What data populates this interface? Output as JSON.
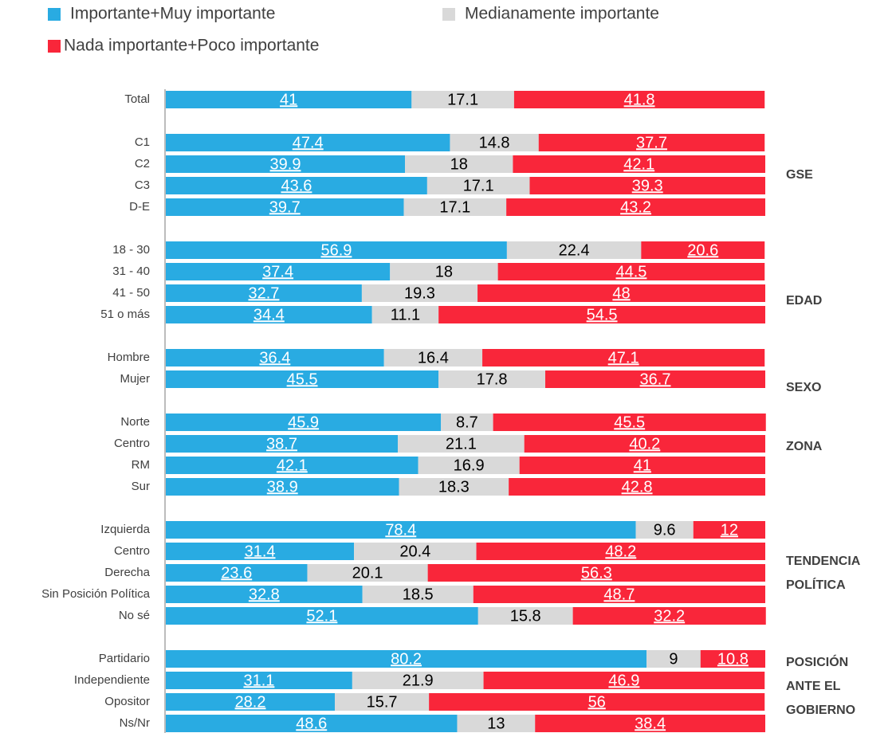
{
  "chart_data": {
    "type": "stacked-bar-horizontal",
    "categories": [
      "Total",
      null,
      "C1",
      "C2",
      "C3",
      "D-E",
      null,
      "18 - 30",
      "31 - 40",
      "41 - 50",
      "51 o más",
      null,
      "Hombre",
      "Mujer",
      null,
      "Norte",
      "Centro",
      "RM",
      "Sur",
      null,
      "Izquierda",
      "Centro",
      "Derecha",
      "Sin Posición Política",
      "No sé",
      null,
      "Partidario",
      "Independiente",
      "Opositor",
      "Ns/Nr"
    ],
    "series": [
      {
        "name": "Importante+Muy importante",
        "color": "#29abe2",
        "values": [
          41,
          null,
          47.4,
          39.9,
          43.6,
          39.7,
          null,
          56.9,
          37.4,
          32.7,
          34.4,
          null,
          36.4,
          45.5,
          null,
          45.9,
          38.7,
          42.1,
          38.9,
          null,
          78.4,
          31.4,
          23.6,
          32.8,
          52.1,
          null,
          80.2,
          31.1,
          28.2,
          48.6
        ]
      },
      {
        "name": "Medianamente importante",
        "color": "#d9d9d9",
        "values": [
          17.1,
          null,
          14.8,
          18,
          17.1,
          17.1,
          null,
          22.4,
          18,
          19.3,
          11.1,
          null,
          16.4,
          17.8,
          null,
          8.7,
          21.1,
          16.9,
          18.3,
          null,
          9.6,
          20.4,
          20.1,
          18.5,
          15.8,
          null,
          9,
          21.9,
          15.7,
          13
        ]
      },
      {
        "name": "Nada importante+Poco importante",
        "color": "#f9263a",
        "values": [
          41.8,
          null,
          37.7,
          42.1,
          39.3,
          43.2,
          null,
          20.6,
          44.5,
          48,
          54.5,
          null,
          47.1,
          36.7,
          null,
          45.5,
          40.2,
          41,
          42.8,
          null,
          12,
          48.2,
          56.3,
          48.7,
          32.2,
          null,
          10.8,
          46.9,
          56,
          38.4
        ]
      }
    ],
    "groups": [
      [
        "GSE"
      ],
      [
        "EDAD"
      ],
      [
        "SEXO"
      ],
      [
        "ZONA"
      ],
      [
        "TENDENCIA",
        "POLÍTICA"
      ],
      [
        "POSICIÓN",
        "ANTE EL",
        "GOBIERNO"
      ]
    ],
    "xlim": [
      0,
      100
    ]
  }
}
